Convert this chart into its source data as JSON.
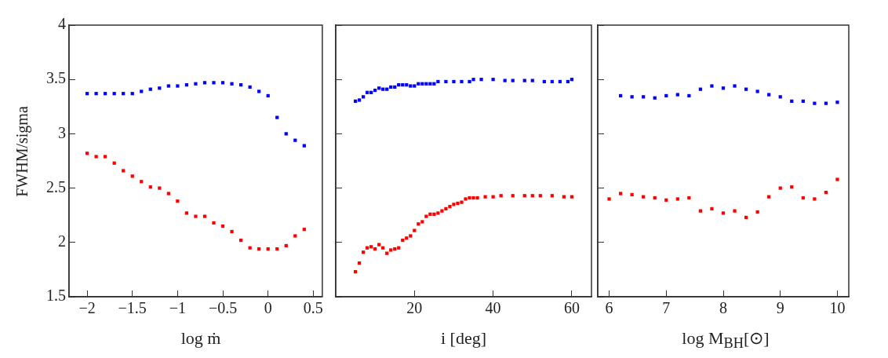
{
  "chart_data": [
    {
      "type": "scatter",
      "xlabel": "log ṁ",
      "ylabel": "FWHM/sigma",
      "xlim": [
        -2.2,
        0.6
      ],
      "xticks": [
        -2,
        -1.5,
        -1,
        -0.5,
        0,
        0.5
      ],
      "ylim": [
        1.5,
        4
      ],
      "yticks": [
        1.5,
        2,
        2.5,
        3,
        3.5,
        4
      ],
      "marker": "square",
      "series": [
        {
          "color": "#0000ff",
          "x": [
            -2,
            -1.9,
            -1.8,
            -1.7,
            -1.6,
            -1.5,
            -1.4,
            -1.3,
            -1.2,
            -1.1,
            -1,
            -0.9,
            -0.8,
            -0.7,
            -0.6,
            -0.5,
            -0.4,
            -0.3,
            -0.2,
            -0.1,
            0,
            0.1,
            0.2,
            0.3,
            0.4
          ],
          "values": [
            3.37,
            3.37,
            3.37,
            3.37,
            3.37,
            3.37,
            3.39,
            3.41,
            3.42,
            3.44,
            3.44,
            3.45,
            3.46,
            3.47,
            3.47,
            3.47,
            3.46,
            3.45,
            3.43,
            3.39,
            3.35,
            3.15,
            3.0,
            2.94,
            2.89
          ]
        },
        {
          "color": "#ff0000",
          "x": [
            -2,
            -1.9,
            -1.8,
            -1.7,
            -1.6,
            -1.5,
            -1.4,
            -1.3,
            -1.2,
            -1.1,
            -1,
            -0.9,
            -0.8,
            -0.7,
            -0.6,
            -0.5,
            -0.4,
            -0.3,
            -0.2,
            -0.1,
            0,
            0.1,
            0.2,
            0.3,
            0.4
          ],
          "values": [
            2.82,
            2.79,
            2.79,
            2.73,
            2.66,
            2.61,
            2.56,
            2.51,
            2.5,
            2.45,
            2.38,
            2.27,
            2.24,
            2.24,
            2.18,
            2.15,
            2.1,
            2.02,
            1.95,
            1.94,
            1.94,
            1.94,
            1.97,
            2.06,
            2.12
          ]
        }
      ]
    },
    {
      "type": "scatter",
      "xlabel": "i [deg]",
      "xlim": [
        0,
        65
      ],
      "xticks": [
        20,
        40,
        60
      ],
      "ylim": [
        1.5,
        4
      ],
      "yticks": [
        1.5,
        2,
        2.5,
        3,
        3.5,
        4
      ],
      "marker": "square",
      "tick_labels": "x",
      "series": [
        {
          "color": "#0000ff",
          "x": [
            5,
            6,
            7,
            8,
            9,
            10,
            11,
            12,
            13,
            14,
            15,
            16,
            17,
            18,
            19,
            20,
            21,
            22,
            23,
            24,
            25,
            26,
            28,
            30,
            32,
            34,
            35,
            37,
            40,
            43,
            45,
            48,
            50,
            53,
            55,
            57,
            59,
            60
          ],
          "values": [
            3.3,
            3.31,
            3.34,
            3.38,
            3.38,
            3.4,
            3.42,
            3.41,
            3.41,
            3.43,
            3.43,
            3.45,
            3.45,
            3.45,
            3.44,
            3.44,
            3.46,
            3.46,
            3.46,
            3.46,
            3.46,
            3.48,
            3.48,
            3.48,
            3.48,
            3.48,
            3.5,
            3.5,
            3.5,
            3.49,
            3.49,
            3.49,
            3.49,
            3.48,
            3.48,
            3.48,
            3.48,
            3.5
          ]
        },
        {
          "color": "#ff0000",
          "x": [
            5,
            6,
            7,
            8,
            9,
            10,
            11,
            12,
            13,
            14,
            15,
            16,
            17,
            18,
            19,
            20,
            21,
            22,
            23,
            24,
            25,
            26,
            27,
            28,
            29,
            30,
            31,
            32,
            33,
            34,
            35,
            36,
            38,
            40,
            42,
            45,
            48,
            50,
            52,
            55,
            58,
            60
          ],
          "values": [
            1.73,
            1.81,
            1.91,
            1.95,
            1.96,
            1.94,
            1.98,
            1.95,
            1.9,
            1.93,
            1.94,
            1.95,
            2.02,
            2.04,
            2.06,
            2.11,
            2.17,
            2.19,
            2.24,
            2.26,
            2.26,
            2.27,
            2.29,
            2.31,
            2.33,
            2.35,
            2.36,
            2.37,
            2.4,
            2.41,
            2.41,
            2.41,
            2.42,
            2.42,
            2.43,
            2.43,
            2.43,
            2.43,
            2.43,
            2.43,
            2.42,
            2.42
          ]
        }
      ]
    },
    {
      "type": "scatter",
      "xlabel": "log M$_{BH}$[⊙]",
      "xlim": [
        5.8,
        10.2
      ],
      "xticks": [
        6,
        7,
        8,
        9,
        10
      ],
      "ylim": [
        1.5,
        4
      ],
      "yticks": [
        1.5,
        2,
        2.5,
        3,
        3.5,
        4
      ],
      "marker": "square",
      "tick_labels": "x",
      "series": [
        {
          "color": "#0000ff",
          "x": [
            6.2,
            6.4,
            6.6,
            6.8,
            7,
            7.2,
            7.4,
            7.6,
            7.8,
            8,
            8.2,
            8.4,
            8.6,
            8.8,
            9,
            9.2,
            9.4,
            9.6,
            9.8,
            10
          ],
          "values": [
            3.35,
            3.34,
            3.34,
            3.33,
            3.35,
            3.36,
            3.35,
            3.41,
            3.44,
            3.42,
            3.44,
            3.41,
            3.39,
            3.36,
            3.34,
            3.3,
            3.3,
            3.28,
            3.28,
            3.29
          ]
        },
        {
          "color": "#ff0000",
          "x": [
            6,
            6.2,
            6.4,
            6.6,
            6.8,
            7,
            7.2,
            7.4,
            7.6,
            7.8,
            8,
            8.2,
            8.4,
            8.6,
            8.8,
            9,
            9.2,
            9.4,
            9.6,
            9.8,
            10
          ],
          "values": [
            2.4,
            2.45,
            2.44,
            2.42,
            2.41,
            2.39,
            2.4,
            2.41,
            2.29,
            2.31,
            2.27,
            2.29,
            2.23,
            2.28,
            2.42,
            2.5,
            2.51,
            2.41,
            2.4,
            2.46,
            2.58
          ]
        }
      ]
    }
  ]
}
